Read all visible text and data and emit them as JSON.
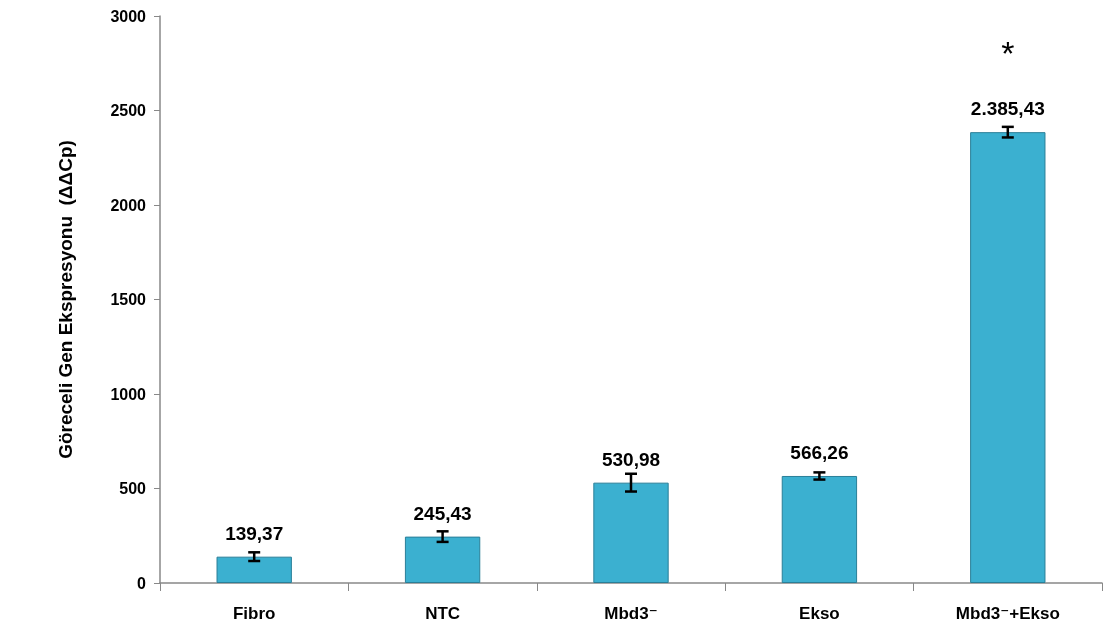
{
  "chart_data": {
    "type": "bar",
    "ylabel": "Göreceli Gen Ekspresyonu  (ΔΔCp)",
    "categories": [
      "Fibro",
      "NTC",
      "Mbd3⁻",
      "Ekso",
      "Mbd3⁻+Ekso"
    ],
    "values": [
      139.37,
      245.43,
      530.98,
      566.26,
      2385.43
    ],
    "errors": [
      23,
      28,
      47,
      19,
      28
    ],
    "value_labels": [
      "139,37",
      "245,43",
      "530,98",
      "566,26",
      "2.385,43"
    ],
    "color": "#3bb0d0",
    "ylim": [
      0,
      3000
    ],
    "yticks": [
      0,
      500,
      1000,
      1500,
      2000,
      2500,
      3000
    ],
    "grid": false,
    "annotations": [
      "*"
    ]
  }
}
